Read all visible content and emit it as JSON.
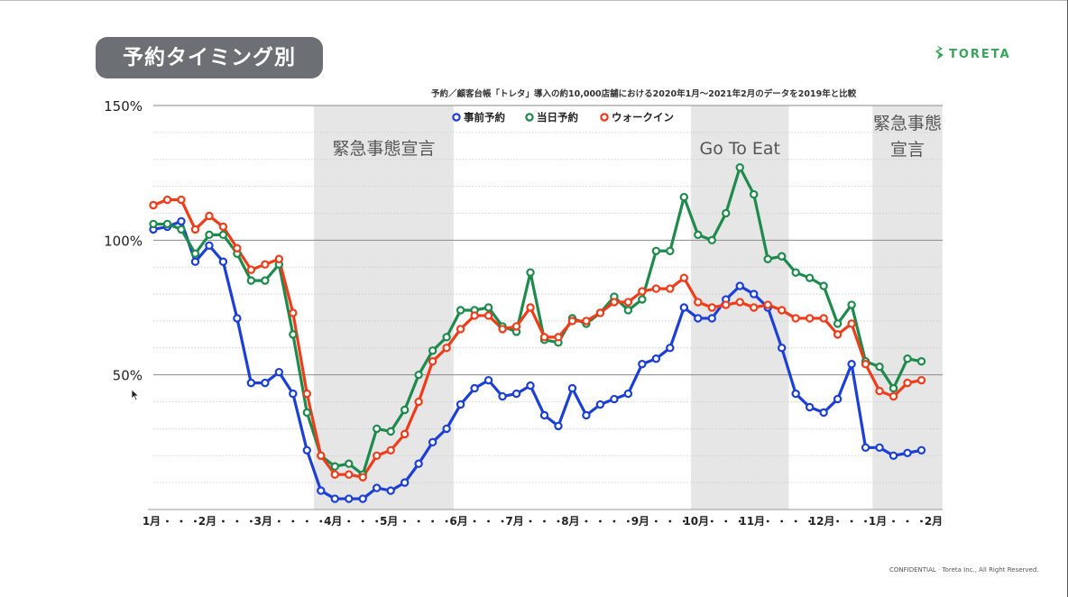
{
  "header": {
    "title": "予約タイミング別",
    "logo_text": "TORETA",
    "subtitle": "予約／顧客台帳「トレタ」導入の約10,000店舗における2020年1月〜2021年2月のデータを2019年と比較",
    "confidential": "CONFIDENTIAL · Toreta Inc., All Right Reserved."
  },
  "colors": {
    "series_blue": "#1c3fd6",
    "series_green": "#1e8a4c",
    "series_red": "#ef3c1a",
    "shade": "#e6e6e6",
    "title_bg": "#6c6f73",
    "logo": "#39a45a"
  },
  "icons": [
    "toreta-logo-icon",
    "mouse-cursor-icon"
  ],
  "chart_data": {
    "type": "line",
    "title": "",
    "ylim": [
      0,
      150
    ],
    "yticks": [
      {
        "value": 150,
        "label": "150%"
      },
      {
        "value": 100,
        "label": "100%"
      },
      {
        "value": 50,
        "label": "50%"
      }
    ],
    "minor_grid_step": 10,
    "x_count": 57,
    "xtick_labels": [
      {
        "index": 0,
        "text": "1月"
      },
      {
        "index": 4,
        "text": "2月"
      },
      {
        "index": 8,
        "text": "3月"
      },
      {
        "index": 13,
        "text": "4月"
      },
      {
        "index": 17,
        "text": "5月"
      },
      {
        "index": 22,
        "text": "6月"
      },
      {
        "index": 26,
        "text": "7月"
      },
      {
        "index": 30,
        "text": "8月"
      },
      {
        "index": 35,
        "text": "9月"
      },
      {
        "index": 39,
        "text": "10月"
      },
      {
        "index": 43,
        "text": "11月"
      },
      {
        "index": 48,
        "text": "12月"
      },
      {
        "index": 52,
        "text": "1月"
      },
      {
        "index": 56,
        "text": "2月"
      }
    ],
    "legend": {
      "position": "top-center",
      "entries": [
        {
          "name": "事前予約",
          "color": "#1c3fd6"
        },
        {
          "name": "当日予約",
          "color": "#1e8a4c"
        },
        {
          "name": "ウォークイン",
          "color": "#ef3c1a"
        }
      ]
    },
    "shaded_regions": [
      {
        "x_start": 12,
        "x_end": 21,
        "label_lines": [
          "緊急事態宣言"
        ]
      },
      {
        "x_start": 39,
        "x_end": 45,
        "label_lines": [
          "Go To Eat"
        ]
      },
      {
        "x_start": 52,
        "x_end": 56,
        "label_lines": [
          "緊急事態",
          "宣言"
        ]
      }
    ],
    "series": [
      {
        "name": "事前予約",
        "color": "#1c3fd6",
        "values": [
          104,
          105,
          107,
          92,
          98,
          92,
          71,
          47,
          47,
          51,
          43,
          22,
          7,
          4,
          4,
          4,
          8,
          7,
          10,
          17,
          25,
          30,
          39,
          45,
          48,
          42,
          43,
          46,
          35,
          31,
          45,
          35,
          39,
          41,
          43,
          54,
          56,
          60,
          75,
          71,
          71,
          78,
          83,
          80,
          75,
          60,
          43,
          38,
          36,
          41,
          54,
          23,
          23,
          20,
          21,
          22
        ]
      },
      {
        "name": "当日予約",
        "color": "#1e8a4c",
        "values": [
          106,
          106,
          104,
          95,
          102,
          102,
          95,
          85,
          85,
          91,
          65,
          36,
          20,
          16,
          17,
          13,
          30,
          29,
          37,
          50,
          59,
          64,
          74,
          74,
          75,
          68,
          66,
          88,
          63,
          62,
          71,
          69,
          73,
          79,
          74,
          78,
          96,
          96,
          116,
          102,
          100,
          110,
          127,
          117,
          93,
          94,
          88,
          86,
          83,
          69,
          76,
          55,
          53,
          45,
          56,
          55
        ]
      },
      {
        "name": "ウォークイン",
        "color": "#ef3c1a",
        "values": [
          113,
          115,
          115,
          104,
          109,
          105,
          97,
          89,
          91,
          93,
          73,
          43,
          20,
          13,
          13,
          12,
          20,
          22,
          28,
          40,
          55,
          60,
          67,
          72,
          72,
          67,
          68,
          75,
          64,
          64,
          70,
          70,
          73,
          77,
          77,
          81,
          82,
          82,
          86,
          77,
          75,
          76,
          77,
          75,
          76,
          74,
          71,
          71,
          71,
          65,
          69,
          54,
          44,
          42,
          47,
          48
        ]
      }
    ]
  }
}
